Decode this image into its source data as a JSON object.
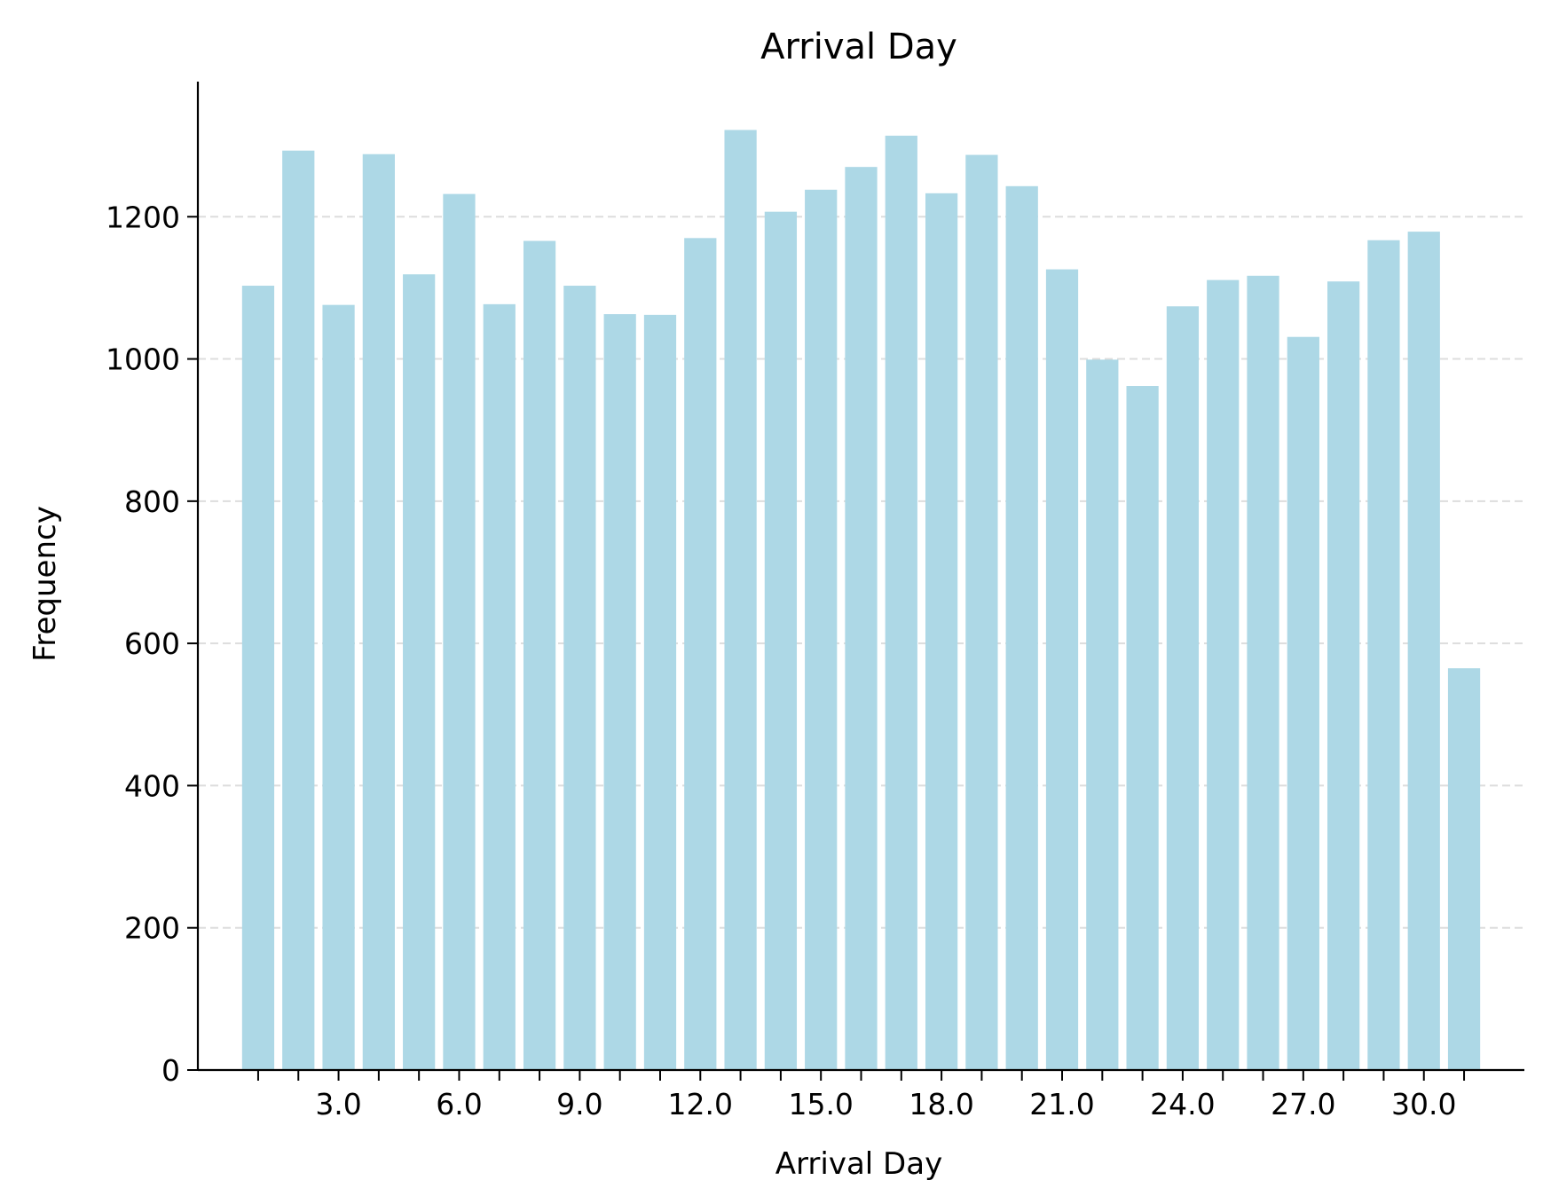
{
  "chart_data": {
    "type": "bar",
    "title": "Arrival Day",
    "xlabel": "Arrival Day",
    "ylabel": "Frequency",
    "categories": [
      1,
      2,
      3,
      4,
      5,
      6,
      7,
      8,
      9,
      10,
      11,
      12,
      13,
      14,
      15,
      16,
      17,
      18,
      19,
      20,
      21,
      22,
      23,
      24,
      25,
      26,
      27,
      28,
      29,
      30,
      31
    ],
    "values": [
      1103,
      1293,
      1076,
      1288,
      1119,
      1232,
      1077,
      1166,
      1103,
      1063,
      1062,
      1170,
      1322,
      1207,
      1238,
      1270,
      1314,
      1233,
      1287,
      1243,
      1126,
      999,
      962,
      1074,
      1111,
      1117,
      1031,
      1109,
      1167,
      1179,
      565
    ],
    "ylim": [
      0,
      1390
    ],
    "xlim": [
      -0.5,
      32.5
    ],
    "yticks": [
      0,
      200,
      400,
      600,
      800,
      1000,
      1200
    ],
    "ytick_labels": [
      "0",
      "200",
      "400",
      "600",
      "800",
      "1000",
      "1200"
    ],
    "xtick_labels": [
      {
        "x": 3,
        "label": "3.0"
      },
      {
        "x": 6,
        "label": "6.0"
      },
      {
        "x": 9,
        "label": "9.0"
      },
      {
        "x": 12,
        "label": "12.0"
      },
      {
        "x": 15,
        "label": "15.0"
      },
      {
        "x": 18,
        "label": "18.0"
      },
      {
        "x": 21,
        "label": "21.0"
      },
      {
        "x": 24,
        "label": "24.0"
      },
      {
        "x": 27,
        "label": "27.0"
      },
      {
        "x": 30,
        "label": "30.0"
      }
    ],
    "grid": "horizontal-dashed",
    "bar_color": "#add8e6",
    "grid_color": "#dddddd",
    "axis_color": "#000000"
  }
}
